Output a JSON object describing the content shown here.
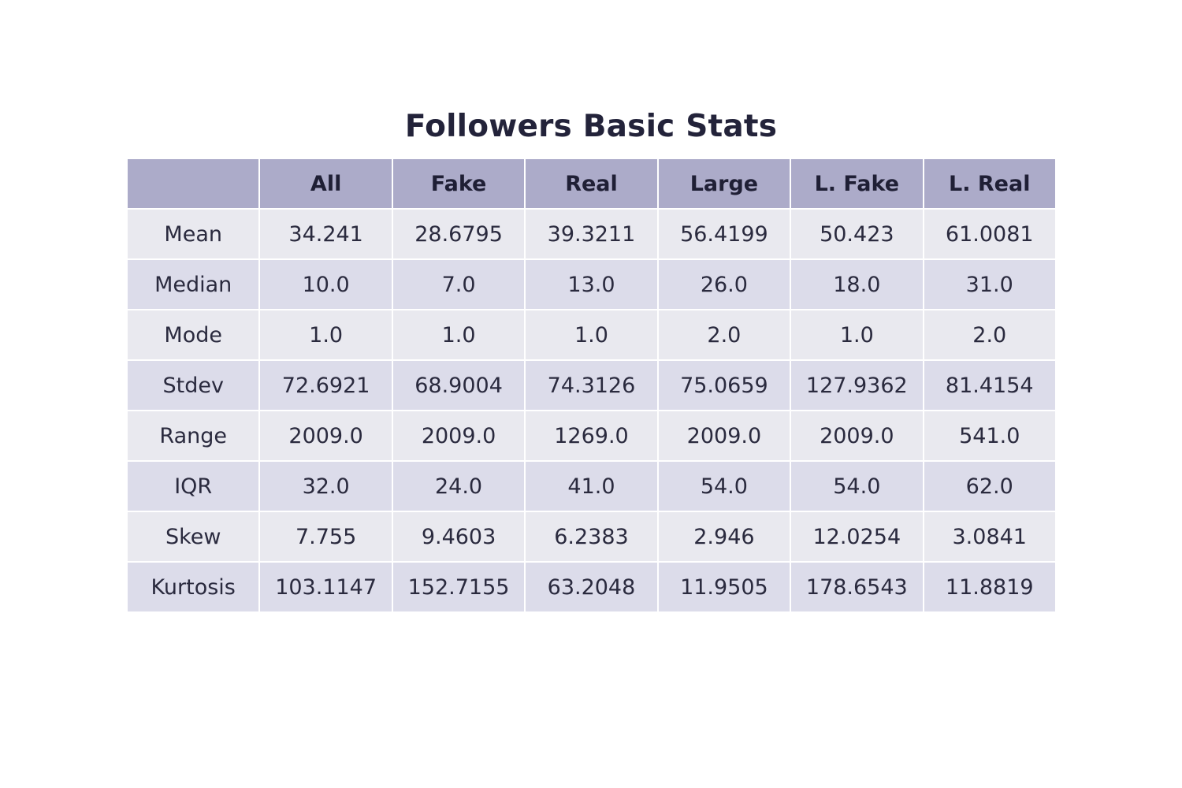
{
  "chart_data": {
    "type": "table",
    "title": "Followers Basic Stats",
    "columns": [
      "",
      "All",
      "Fake",
      "Real",
      "Large",
      "L. Fake",
      "L. Real"
    ],
    "rows": [
      [
        "Mean",
        "34.241",
        "28.6795",
        "39.3211",
        "56.4199",
        "50.423",
        "61.0081"
      ],
      [
        "Median",
        "10.0",
        "7.0",
        "13.0",
        "26.0",
        "18.0",
        "31.0"
      ],
      [
        "Mode",
        "1.0",
        "1.0",
        "1.0",
        "2.0",
        "1.0",
        "2.0"
      ],
      [
        "Stdev",
        "72.6921",
        "68.9004",
        "74.3126",
        "75.0659",
        "127.9362",
        "81.4154"
      ],
      [
        "Range",
        "2009.0",
        "2009.0",
        "1269.0",
        "2009.0",
        "2009.0",
        "541.0"
      ],
      [
        "IQR",
        "32.0",
        "24.0",
        "41.0",
        "54.0",
        "54.0",
        "62.0"
      ],
      [
        "Skew",
        "7.755",
        "9.4603",
        "6.2383",
        "2.946",
        "12.0254",
        "3.0841"
      ],
      [
        "Kurtosis",
        "103.1147",
        "152.7155",
        "63.2048",
        "11.9505",
        "178.6543",
        "11.8819"
      ]
    ],
    "colors": {
      "header_fill": "#acabc9",
      "row_fill_odd": "#e9e9ef",
      "row_fill_even": "#dcdcea",
      "border": "#ffffff"
    }
  }
}
